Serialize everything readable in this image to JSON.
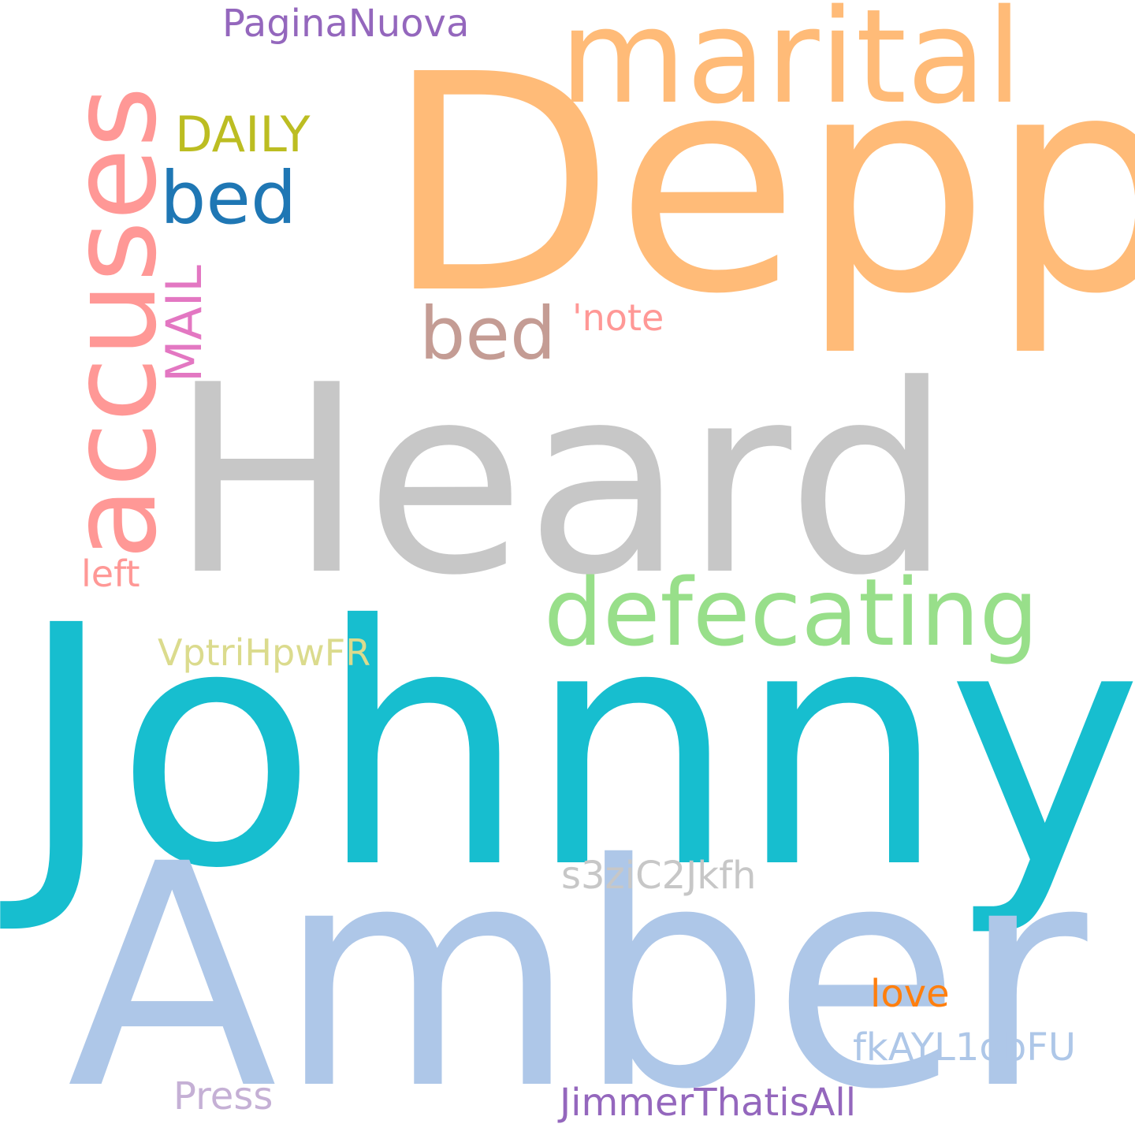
{
  "word_cloud": {
    "words": [
      {
        "key": "depp",
        "text": "Depp",
        "color": "#ffbb78"
      },
      {
        "key": "marital",
        "text": "marital",
        "color": "#ffbb78"
      },
      {
        "key": "accuses",
        "text": "accuses",
        "color": "#ff9896"
      },
      {
        "key": "heard",
        "text": "Heard",
        "color": "#c7c7c7"
      },
      {
        "key": "johnny",
        "text": "Johnny",
        "color": "#17becf"
      },
      {
        "key": "amber",
        "text": "Amber",
        "color": "#aec7e8"
      },
      {
        "key": "defecating",
        "text": "defecating",
        "color": "#98df8a"
      },
      {
        "key": "paginanuova",
        "text": "PaginaNuova",
        "color": "#9467bd"
      },
      {
        "key": "daily",
        "text": "DAILY",
        "color": "#bcbd22"
      },
      {
        "key": "bed1",
        "text": "bed",
        "color": "#1f77b4"
      },
      {
        "key": "bed2",
        "text": "bed",
        "color": "#c49c94"
      },
      {
        "key": "mail",
        "text": "MAIL",
        "color": "#e377c2"
      },
      {
        "key": "note",
        "text": "'note",
        "color": "#ff9896"
      },
      {
        "key": "left",
        "text": "left",
        "color": "#ff9896"
      },
      {
        "key": "vptri",
        "text": "VptriHpwFR",
        "color": "#dbdb8d"
      },
      {
        "key": "s3zi",
        "text": "s3ziC2Jkfh",
        "color": "#c7c7c7"
      },
      {
        "key": "love",
        "text": "love",
        "color": "#ff7f0e"
      },
      {
        "key": "fkayl",
        "text": "fkAYL1obFU",
        "color": "#aec7e8"
      },
      {
        "key": "press",
        "text": "Press",
        "color": "#c5b0d5"
      },
      {
        "key": "jimmer",
        "text": "JimmerThatisAll",
        "color": "#9467bd"
      }
    ]
  }
}
